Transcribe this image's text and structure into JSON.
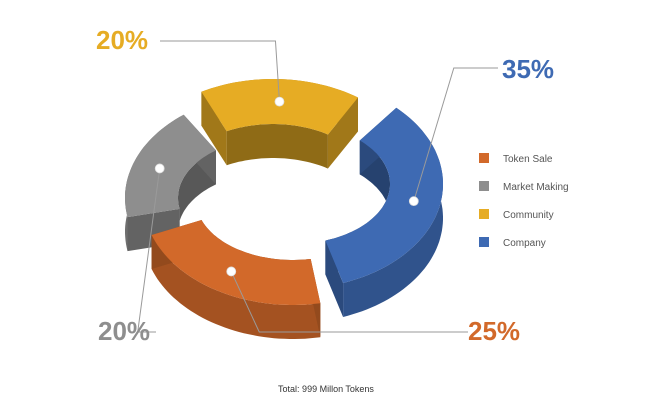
{
  "chart_data": {
    "type": "pie",
    "variant": "3d-donut",
    "categories": [
      "Token Sale",
      "Market Making",
      "Community",
      "Company"
    ],
    "values": [
      25,
      20,
      20,
      35
    ],
    "value_labels": [
      "25%",
      "20%",
      "20%",
      "35%"
    ],
    "colors": [
      "#D2692A",
      "#8E8E8E",
      "#E6AC24",
      "#3E6AB3"
    ],
    "legend_position": "right",
    "footer": "Total: 999 Millon Tokens"
  }
}
